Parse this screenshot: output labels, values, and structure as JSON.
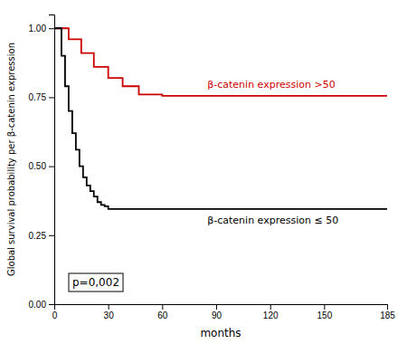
{
  "chart_data": {
    "type": "line",
    "title": "",
    "xlabel": "months",
    "ylabel": "Global survival probability per β-catenin expression",
    "xlim": [
      0,
      185
    ],
    "ylim": [
      0.0,
      1.05
    ],
    "xticks": [
      0,
      30,
      60,
      90,
      120,
      150,
      185
    ],
    "yticks": [
      {
        "value": 0.0,
        "label": "0.00"
      },
      {
        "value": 0.25,
        "label": "0.25"
      },
      {
        "value": 0.5,
        "label": "0.50"
      },
      {
        "value": 0.75,
        "label": "0.75"
      },
      {
        "value": 1.0,
        "label": "1.00"
      }
    ],
    "grid": false,
    "series": [
      {
        "name": "β-catenin expression >50",
        "color": "#cc0000",
        "x": [
          0,
          8,
          8,
          15,
          15,
          22,
          22,
          30,
          30,
          38,
          38,
          47,
          47,
          60,
          60,
          185
        ],
        "values": [
          1.0,
          1.0,
          0.96,
          0.96,
          0.91,
          0.91,
          0.86,
          0.86,
          0.82,
          0.82,
          0.79,
          0.79,
          0.76,
          0.76,
          0.755,
          0.755
        ]
      },
      {
        "name": "β-catenin expression ≤ 50",
        "color": "#000000",
        "x": [
          0,
          4,
          4,
          6,
          6,
          8,
          8,
          10,
          10,
          12,
          12,
          14,
          14,
          16,
          16,
          18,
          18,
          20,
          20,
          22,
          22,
          24,
          24,
          26,
          26,
          28,
          28,
          30,
          30,
          185
        ],
        "values": [
          1.0,
          1.0,
          0.9,
          0.9,
          0.79,
          0.79,
          0.7,
          0.7,
          0.62,
          0.62,
          0.56,
          0.56,
          0.5,
          0.5,
          0.46,
          0.46,
          0.43,
          0.43,
          0.41,
          0.41,
          0.39,
          0.39,
          0.37,
          0.37,
          0.36,
          0.36,
          0.355,
          0.355,
          0.345,
          0.345
        ]
      }
    ],
    "annotation": "p=0,002"
  }
}
